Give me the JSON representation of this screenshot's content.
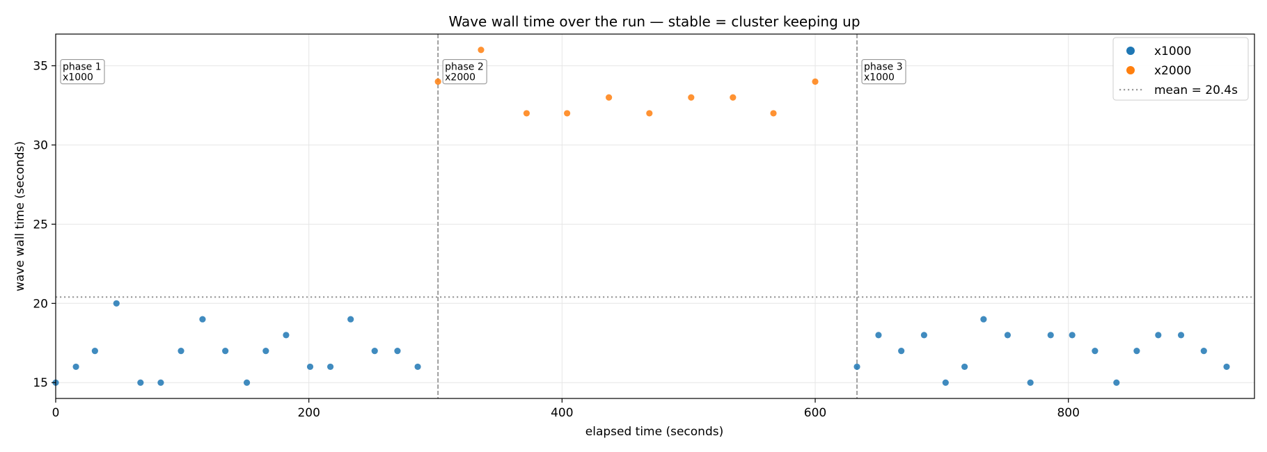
{
  "chart_data": {
    "type": "scatter",
    "title": "Wave wall time over the run — stable = cluster keeping up",
    "xlabel": "elapsed time (seconds)",
    "ylabel": "wave wall time (seconds)",
    "xlim": [
      0,
      947
    ],
    "ylim": [
      14,
      37
    ],
    "xticks": [
      0,
      200,
      400,
      600,
      800
    ],
    "yticks": [
      15,
      20,
      25,
      30,
      35
    ],
    "grid": true,
    "legend_position": "top-right",
    "series": [
      {
        "name": "x1000",
        "color": "#1f77b4",
        "points": [
          [
            0,
            15
          ],
          [
            16,
            16
          ],
          [
            31,
            17
          ],
          [
            48,
            20
          ],
          [
            67,
            15
          ],
          [
            83,
            15
          ],
          [
            99,
            17
          ],
          [
            116,
            19
          ],
          [
            134,
            17
          ],
          [
            151,
            15
          ],
          [
            166,
            17
          ],
          [
            182,
            18
          ],
          [
            201,
            16
          ],
          [
            217,
            16
          ],
          [
            233,
            19
          ],
          [
            252,
            17
          ],
          [
            270,
            17
          ],
          [
            286,
            16
          ],
          [
            633,
            16
          ],
          [
            650,
            18
          ],
          [
            668,
            17
          ],
          [
            686,
            18
          ],
          [
            703,
            15
          ],
          [
            718,
            16
          ],
          [
            733,
            19
          ],
          [
            752,
            18
          ],
          [
            770,
            15
          ],
          [
            786,
            18
          ],
          [
            803,
            18
          ],
          [
            821,
            17
          ],
          [
            838,
            15
          ],
          [
            854,
            17
          ],
          [
            871,
            18
          ],
          [
            889,
            18
          ],
          [
            907,
            17
          ],
          [
            925,
            16
          ]
        ]
      },
      {
        "name": "x2000",
        "color": "#ff7f0e",
        "points": [
          [
            302,
            34
          ],
          [
            336,
            36
          ],
          [
            372,
            32
          ],
          [
            404,
            32
          ],
          [
            437,
            33
          ],
          [
            469,
            32
          ],
          [
            502,
            33
          ],
          [
            535,
            33
          ],
          [
            567,
            32
          ],
          [
            600,
            34
          ]
        ]
      }
    ],
    "reference_lines": [
      {
        "type": "horizontal",
        "y": 20.4,
        "label": "mean = 20.4s",
        "style": "dotted",
        "color": "#999999"
      }
    ],
    "phase_markers": [
      {
        "x": 302,
        "label_line1": "phase 2",
        "label_line2": "x2000"
      },
      {
        "x": 633,
        "label_line1": "phase 3",
        "label_line2": "x1000"
      }
    ],
    "annotations": [
      {
        "x": 0,
        "label_line1": "phase 1",
        "label_line2": "x1000"
      },
      {
        "x": 302,
        "label_line1": "phase 2",
        "label_line2": "x2000"
      },
      {
        "x": 633,
        "label_line1": "phase 3",
        "label_line2": "x1000"
      }
    ]
  }
}
